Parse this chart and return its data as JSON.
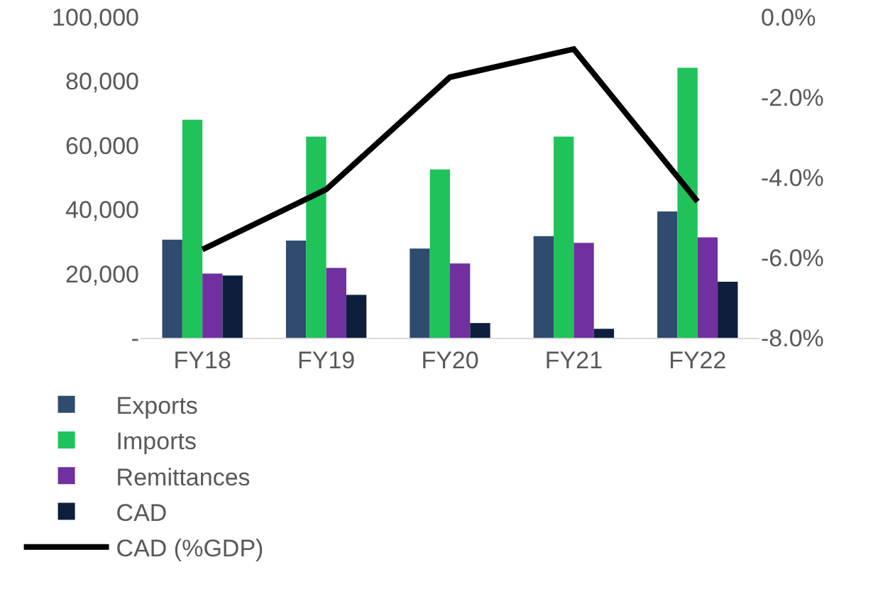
{
  "chart_data": {
    "type": "bar",
    "categories": [
      "FY18",
      "FY19",
      "FY20",
      "FY21",
      "FY22"
    ],
    "series": [
      {
        "name": "Exports",
        "color": "#2f4b6e",
        "values": [
          30600,
          30300,
          27800,
          31700,
          39400
        ]
      },
      {
        "name": "Imports",
        "color": "#1fc35a",
        "values": [
          68000,
          62700,
          52500,
          62700,
          84200
        ]
      },
      {
        "name": "Remittances",
        "color": "#7030a0",
        "values": [
          20000,
          21800,
          23200,
          29600,
          31300
        ]
      },
      {
        "name": "CAD",
        "color": "#0d1f3c",
        "values": [
          19400,
          13400,
          4600,
          2800,
          17500
        ]
      },
      {
        "name": "CAD (%GDP)",
        "type": "line",
        "axis": "y2",
        "color": "#000000",
        "values": [
          -5.8,
          -4.3,
          -1.5,
          -0.8,
          -4.6
        ]
      }
    ],
    "ylim": [
      0,
      100000
    ],
    "yticks": [
      {
        "value": 0,
        "label": "-"
      },
      {
        "value": 20000,
        "label": "20,000"
      },
      {
        "value": 40000,
        "label": "40,000"
      },
      {
        "value": 60000,
        "label": "60,000"
      },
      {
        "value": 80000,
        "label": "80,000"
      },
      {
        "value": 100000,
        "label": "100,000"
      }
    ],
    "y2lim": [
      -8,
      0
    ],
    "y2ticks": [
      {
        "value": -8,
        "label": "-8.0%"
      },
      {
        "value": -6,
        "label": "-6.0%"
      },
      {
        "value": -4,
        "label": "-4.0%"
      },
      {
        "value": -2,
        "label": "-2.0%"
      },
      {
        "value": 0,
        "label": "0.0%"
      }
    ],
    "grid": false,
    "legend": "bottom",
    "marker": "none",
    "line_style": "solid"
  }
}
